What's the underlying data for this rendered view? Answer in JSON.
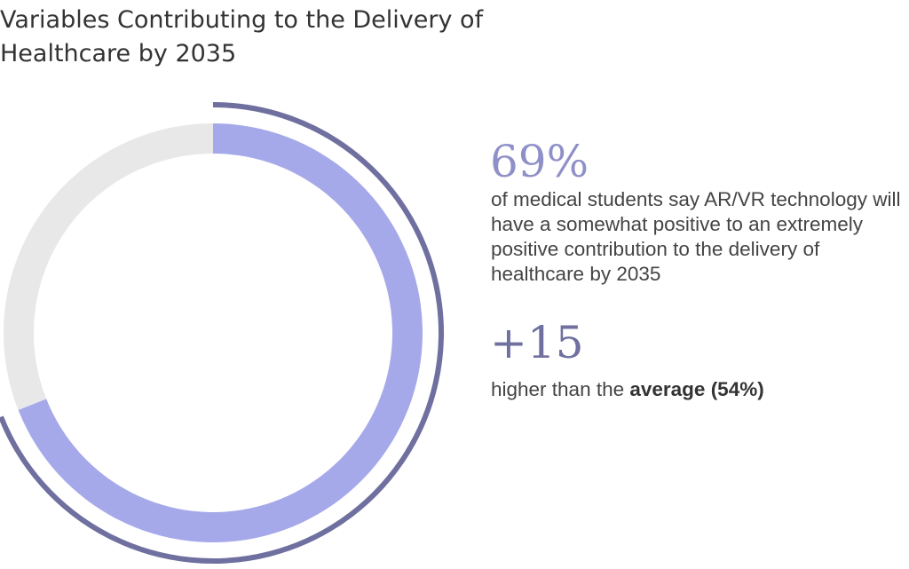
{
  "title": "Variables Contributing to the Delivery of Healthcare by 2035",
  "colors": {
    "highlight": "#a6a9e9",
    "remainder": "#e8e8e8",
    "arc": "#6f709f",
    "stat_text": "#8f90c8"
  },
  "chart_data": {
    "type": "pie",
    "style": "donut",
    "values": [
      69,
      31
    ],
    "highlighted_index": 0,
    "outer_arc_value": 69,
    "title": "Variables Contributing to the Delivery of Healthcare by 2035"
  },
  "stat": {
    "value": "69%",
    "description": "of medical students say AR/VR technology will have a somewhat positive to an extremely positive contribution to the delivery of healthcare by 2035"
  },
  "delta": {
    "value": "+15",
    "text_prefix": "higher than the ",
    "text_bold": "average (54%)"
  }
}
